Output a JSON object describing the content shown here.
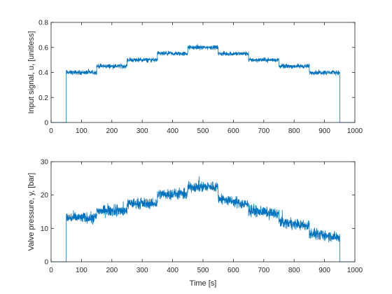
{
  "chart_data": [
    {
      "type": "line",
      "ylabel": "Input signal, u, [unitless]",
      "xlabel": "",
      "xlim": [
        0,
        1000
      ],
      "ylim": [
        0,
        0.8
      ],
      "xticks": [
        "0",
        "100",
        "200",
        "300",
        "400",
        "500",
        "600",
        "700",
        "800",
        "900",
        "1000"
      ],
      "yticks": [
        "0",
        "0.2",
        "0.4",
        "0.6",
        "0.8"
      ],
      "grid": false,
      "color": "#0072BD",
      "noise_amplitude": 0.025,
      "series": [
        {
          "segments": [
            {
              "start": 0,
              "end": 50,
              "mean": 0
            },
            {
              "start": 50,
              "end": 150,
              "mean": 0.4
            },
            {
              "start": 150,
              "end": 250,
              "mean": 0.45
            },
            {
              "start": 250,
              "end": 350,
              "mean": 0.5
            },
            {
              "start": 350,
              "end": 450,
              "mean": 0.55
            },
            {
              "start": 450,
              "end": 550,
              "mean": 0.6
            },
            {
              "start": 550,
              "end": 650,
              "mean": 0.55
            },
            {
              "start": 650,
              "end": 750,
              "mean": 0.5
            },
            {
              "start": 750,
              "end": 850,
              "mean": 0.45
            },
            {
              "start": 850,
              "end": 950,
              "mean": 0.4
            },
            {
              "start": 950,
              "end": 1000,
              "mean": 0
            }
          ]
        }
      ]
    },
    {
      "type": "line",
      "ylabel": "Valve pressure, y, [bar]",
      "xlabel": "Time [s]",
      "xlim": [
        0,
        1000
      ],
      "ylim": [
        0,
        30
      ],
      "xticks": [
        "0",
        "100",
        "200",
        "300",
        "400",
        "500",
        "600",
        "700",
        "800",
        "900",
        "1000"
      ],
      "yticks": [
        "0",
        "10",
        "20",
        "30"
      ],
      "grid": false,
      "color": "#0072BD",
      "noise_amplitude": 2.3,
      "series": [
        {
          "segments": [
            {
              "start": 0,
              "end": 50,
              "mean": 0,
              "end_mean": 0
            },
            {
              "start": 50,
              "end": 150,
              "mean": 13.2,
              "end_mean": 13.2
            },
            {
              "start": 150,
              "end": 250,
              "mean": 15.3,
              "end_mean": 15.3
            },
            {
              "start": 250,
              "end": 350,
              "mean": 17.5,
              "end_mean": 17.5
            },
            {
              "start": 350,
              "end": 450,
              "mean": 20.3,
              "end_mean": 20.3
            },
            {
              "start": 450,
              "end": 550,
              "mean": 22.5,
              "end_mean": 22.5
            },
            {
              "start": 550,
              "end": 650,
              "mean": 19,
              "end_mean": 17
            },
            {
              "start": 650,
              "end": 750,
              "mean": 15.5,
              "end_mean": 14.3
            },
            {
              "start": 750,
              "end": 850,
              "mean": 12,
              "end_mean": 10.7
            },
            {
              "start": 850,
              "end": 950,
              "mean": 8.5,
              "end_mean": 7.3
            },
            {
              "start": 950,
              "end": 1000,
              "mean": 0,
              "end_mean": 0
            }
          ]
        }
      ]
    }
  ]
}
